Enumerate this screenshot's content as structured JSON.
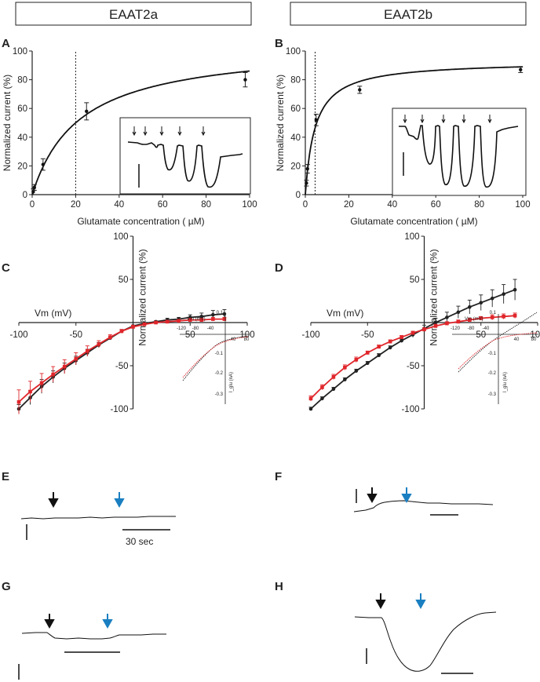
{
  "headers": {
    "left": "EAAT2a",
    "right": "EAAT2b"
  },
  "panel_letters": {
    "A": "A",
    "B": "B",
    "C": "C",
    "D": "D",
    "E": "E",
    "F": "F",
    "G": "G",
    "H": "H"
  },
  "scalebar_text": {
    "E": "30 sec"
  },
  "colors": {
    "black_series": "#222222",
    "red_series": "#e0262b",
    "blue_arrow": "#1a7fc1",
    "black_arrow": "#111111"
  },
  "chart_data": [
    {
      "panel": "A",
      "type": "scatter",
      "title": "",
      "xlabel": "Glutamate concentration ( µM)",
      "ylabel": "Normalized current (%)",
      "xlim": [
        0,
        100
      ],
      "ylim": [
        0,
        100
      ],
      "xticks": [
        0,
        20,
        40,
        60,
        80,
        100
      ],
      "yticks": [
        0,
        20,
        40,
        60,
        80,
        100
      ],
      "x_tick_labels": [
        "0",
        "20",
        "40",
        "60",
        "80",
        "100"
      ],
      "y_tick_labels": [
        "0",
        "20",
        "40",
        "60",
        "80",
        "100"
      ],
      "points": [
        {
          "x": 0.5,
          "y": 2,
          "err": 2
        },
        {
          "x": 1,
          "y": 5,
          "err": 2
        },
        {
          "x": 5,
          "y": 21,
          "err": 4
        },
        {
          "x": 25,
          "y": 58,
          "err": 6
        },
        {
          "x": 98,
          "y": 80,
          "err": 5
        }
      ],
      "fit": {
        "model": "michaelis-menten",
        "vmax": 105,
        "km": 22
      },
      "reference_line_x": 20,
      "inset": {
        "description_hidden": true
      }
    },
    {
      "panel": "B",
      "type": "scatter",
      "title": "",
      "xlabel": "Glutamate concentration ( µM)",
      "ylabel": "Normalized current (%)",
      "xlim": [
        0,
        100
      ],
      "ylim": [
        0,
        100
      ],
      "xticks": [
        0,
        20,
        40,
        60,
        80,
        100
      ],
      "yticks": [
        0,
        20,
        40,
        60,
        80,
        100
      ],
      "x_tick_labels": [
        "0",
        "20",
        "40",
        "60",
        "80",
        "100"
      ],
      "y_tick_labels": [
        "0",
        "20",
        "40",
        "60",
        "80",
        "100"
      ],
      "points": [
        {
          "x": 0.5,
          "y": 8,
          "err": 2
        },
        {
          "x": 1,
          "y": 18,
          "err": 3
        },
        {
          "x": 5,
          "y": 52,
          "err": 4
        },
        {
          "x": 25,
          "y": 73,
          "err": 2.5
        },
        {
          "x": 99,
          "y": 87,
          "err": 2
        }
      ],
      "fit": {
        "model": "michaelis-menten",
        "vmax": 93,
        "km": 4.5
      },
      "reference_line_x": 4.5
    },
    {
      "panel": "C",
      "type": "line",
      "title": "",
      "xlabel": "Vm (mV)",
      "ylabel": "Normalized current (%)",
      "xlim": [
        -100,
        100
      ],
      "ylim": [
        -100,
        100
      ],
      "x_tick_labels": [
        "-100",
        "-50",
        "50",
        "100"
      ],
      "y_tick_labels": [
        "100",
        "50",
        "-50",
        "-100"
      ],
      "x": [
        -100,
        -90,
        -80,
        -70,
        -60,
        -50,
        -40,
        -30,
        -20,
        -10,
        0,
        10,
        20,
        30,
        40,
        50,
        60,
        70,
        80
      ],
      "series": [
        {
          "color": "black",
          "values": [
            -100,
            -87,
            -74,
            -63,
            -53,
            -44,
            -35,
            -26,
            -18,
            -10,
            -4,
            -1,
            1,
            3,
            4,
            6,
            7,
            9,
            10
          ],
          "err": [
            5,
            8,
            8,
            7,
            6,
            5,
            4,
            3,
            2,
            2,
            1,
            1,
            1,
            2,
            2,
            3,
            4,
            5,
            5
          ]
        },
        {
          "color": "red",
          "values": [
            -92,
            -80,
            -70,
            -60,
            -51,
            -42,
            -33,
            -25,
            -17,
            -10,
            -5,
            -2,
            0,
            1,
            2,
            3,
            3,
            4,
            4
          ],
          "err": [
            14,
            12,
            11,
            9,
            8,
            7,
            6,
            4,
            3,
            2,
            2,
            1,
            1,
            1,
            1,
            2,
            2,
            2,
            2
          ]
        }
      ],
      "inset": {
        "xlabel": "Vm (mV)",
        "ylabel": "I_glu (nA)",
        "x_tick_labels": [
          "-120",
          "-80",
          "-40",
          "40",
          "80"
        ],
        "y_tick_labels": [
          "0.1",
          "-0.1",
          "-0.2",
          "-0.3"
        ]
      }
    },
    {
      "panel": "D",
      "type": "line",
      "title": "",
      "xlabel": "Vm (mV)",
      "ylabel": "Normalized current (%)",
      "xlim": [
        -100,
        100
      ],
      "ylim": [
        -100,
        100
      ],
      "x_tick_labels": [
        "-100",
        "-50",
        "50",
        "100"
      ],
      "y_tick_labels": [
        "100",
        "50",
        "-50",
        "-100"
      ],
      "x": [
        -100,
        -90,
        -80,
        -70,
        -60,
        -50,
        -40,
        -30,
        -20,
        -10,
        0,
        10,
        20,
        30,
        40,
        50,
        60,
        70,
        80
      ],
      "series": [
        {
          "color": "black",
          "values": [
            -100,
            -88,
            -77,
            -66,
            -56,
            -47,
            -38,
            -29,
            -21,
            -14,
            -7,
            0,
            6,
            12,
            18,
            23,
            28,
            33,
            38
          ],
          "err": [
            2,
            2,
            2,
            2,
            2,
            2,
            2,
            2,
            2,
            3,
            4,
            5,
            6,
            7,
            8,
            9,
            10,
            11,
            12
          ]
        },
        {
          "color": "red",
          "values": [
            -88,
            -75,
            -63,
            -52,
            -43,
            -35,
            -28,
            -22,
            -17,
            -12,
            -8,
            -4,
            -1,
            1,
            3,
            5,
            6,
            7,
            8
          ],
          "err": [
            3,
            3,
            3,
            3,
            3,
            2,
            2,
            2,
            2,
            2,
            2,
            2,
            2,
            2,
            2,
            2,
            3,
            3,
            3
          ]
        }
      ],
      "inset": {
        "xlabel": "Vm (mV)",
        "ylabel": "I_glu (nA)",
        "x_tick_labels": [
          "-120",
          "-80",
          "-40",
          "40",
          "80"
        ],
        "y_tick_labels": [
          "0.1",
          "-0.1",
          "-0.2",
          "-0.3"
        ]
      }
    }
  ]
}
